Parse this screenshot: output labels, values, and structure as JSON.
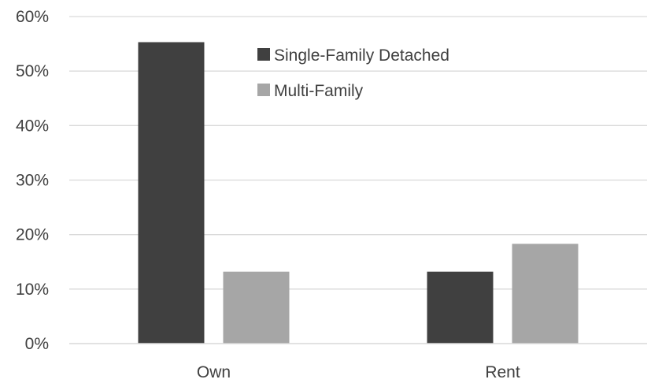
{
  "chart_data": {
    "type": "bar",
    "title": "",
    "xlabel": "",
    "ylabel": "",
    "categories": [
      "Own",
      "Rent"
    ],
    "series": [
      {
        "name": "Single-Family Detached",
        "values": [
          55.3,
          13.2
        ],
        "color": "#404040"
      },
      {
        "name": "Multi-Family",
        "values": [
          13.2,
          18.3
        ],
        "color": "#a6a6a6"
      }
    ],
    "ylim": [
      0,
      60
    ],
    "yticks": [
      0,
      10,
      20,
      30,
      40,
      50,
      60
    ],
    "ytick_labels": [
      "0%",
      "10%",
      "20%",
      "30%",
      "40%",
      "50%",
      "60%"
    ],
    "grid": true,
    "legend_position": "top-right-inside",
    "colors": {
      "gridline": "#d9d9d9",
      "axis": "#d9d9d9",
      "text": "#404040"
    }
  }
}
